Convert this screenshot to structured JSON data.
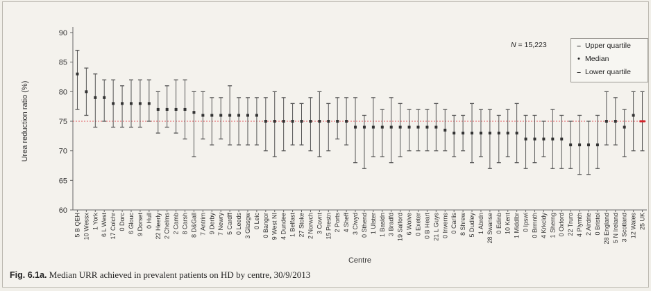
{
  "caption": {
    "figure_label": "Fig. 6.1a.",
    "text": "Median URR achieved in prevalent patients on HD by centre, 30/9/2013"
  },
  "n_label": {
    "symbol": "N",
    "text": " = 15,223"
  },
  "legend": {
    "upper": "Upper quartile",
    "median": "Median",
    "lower": "Lower quartile"
  },
  "colors": {
    "background": "#f4f2ed",
    "whisker": "#555555",
    "median_marker": "#333333",
    "reference_line": "#e0565b",
    "highlight": "#d2232a",
    "axis": "#666666"
  },
  "chart_data": {
    "type": "range",
    "xlabel": "Centre",
    "ylabel": "Urea reduction ratio (%)",
    "ylim": [
      60,
      90
    ],
    "yticks": [
      60,
      65,
      70,
      75,
      80,
      85,
      90
    ],
    "reference_line": 75,
    "grid": false,
    "legend_position": "top-right",
    "highlight_category": "25 UK",
    "categories": [
      "5 B QEH",
      "10 Wessx",
      "1 York",
      "6 L West",
      "17 Colchr",
      "0 Dorc",
      "6 Glouc",
      "9 Dorset",
      "0 Hull",
      "22 Heerly",
      "2 Chelms",
      "2 Camb",
      "8 Carsh",
      "8 D&Gall",
      "7 Antrim",
      "9 Derby",
      "7 Newry",
      "5 Cardff",
      "0 Leeds",
      "3 Glasgw",
      "0 Leic",
      "0 Bangor",
      "9 West NI",
      "4 Dundee",
      "1 Belfast",
      "27 Stoke",
      "2 Norwch",
      "3 Covnt",
      "15 Prestn",
      "2 Ports",
      "4 Sheff",
      "3 Clwyd",
      "0 Sthend",
      "1 Ulster",
      "1 Basldn",
      "3 Bradfd",
      "19 Salford",
      "6 Wolve",
      "0 Exeter",
      "0 B Heart",
      "21 L Guys",
      "0 Inverns",
      "0 Carlis",
      "8 Shrew",
      "5 Dudley",
      "1 Abrdn",
      "28 Swanse",
      "0 Edinb",
      "10 Kent",
      "1 Middlbr",
      "0 Ipswi",
      "0 Brmnth",
      "4 Krkcldy",
      "1 Sherng",
      "0 Oxford",
      "22 Truro",
      "4 Plymth",
      "2 Airdrie",
      "0 Bristol",
      "28 England",
      "5 N Ireland",
      "3 Scotland",
      "12 Wales",
      "25 UK"
    ],
    "series": [
      {
        "name": "Upper quartile",
        "values": [
          87,
          84,
          83,
          82,
          82,
          81,
          82,
          82,
          82,
          80,
          81,
          82,
          82,
          80,
          80,
          79,
          79,
          81,
          79,
          79,
          79,
          79,
          80,
          79,
          78,
          78,
          79,
          80,
          78,
          79,
          79,
          79,
          76,
          79,
          77,
          79,
          78,
          77,
          77,
          77,
          78,
          77,
          76,
          76,
          78,
          77,
          77,
          76,
          77,
          78,
          76,
          76,
          75,
          77,
          76,
          75,
          76,
          75,
          76,
          80,
          79,
          77,
          80,
          80
        ]
      },
      {
        "name": "Median",
        "values": [
          83,
          80,
          79,
          79,
          78,
          78,
          78,
          78,
          78,
          77,
          77,
          77,
          77,
          76.5,
          76,
          76,
          76,
          76,
          76,
          76,
          76,
          75,
          75,
          75,
          75,
          75,
          75,
          75,
          75,
          75,
          75,
          74,
          74,
          74,
          74,
          74,
          74,
          74,
          74,
          74,
          74,
          73.5,
          73,
          73,
          73,
          73,
          73,
          73,
          73,
          73,
          72,
          72,
          72,
          72,
          72,
          71,
          71,
          71,
          71,
          75,
          75,
          74,
          76,
          75
        ]
      },
      {
        "name": "Lower quartile",
        "values": [
          77,
          76,
          74,
          75,
          74,
          74,
          74,
          74,
          75,
          73,
          74,
          73,
          72,
          69,
          72,
          71,
          72,
          71,
          71,
          71,
          71,
          70,
          69,
          70,
          71,
          71,
          70,
          69,
          70,
          72,
          71,
          68,
          67,
          69,
          69,
          68,
          69,
          70,
          70,
          70,
          70,
          70,
          69,
          70,
          68,
          69,
          67,
          68,
          69,
          68,
          67,
          68,
          69,
          67,
          67,
          67,
          66,
          66,
          67,
          71,
          71,
          69,
          70,
          70
        ]
      }
    ]
  }
}
